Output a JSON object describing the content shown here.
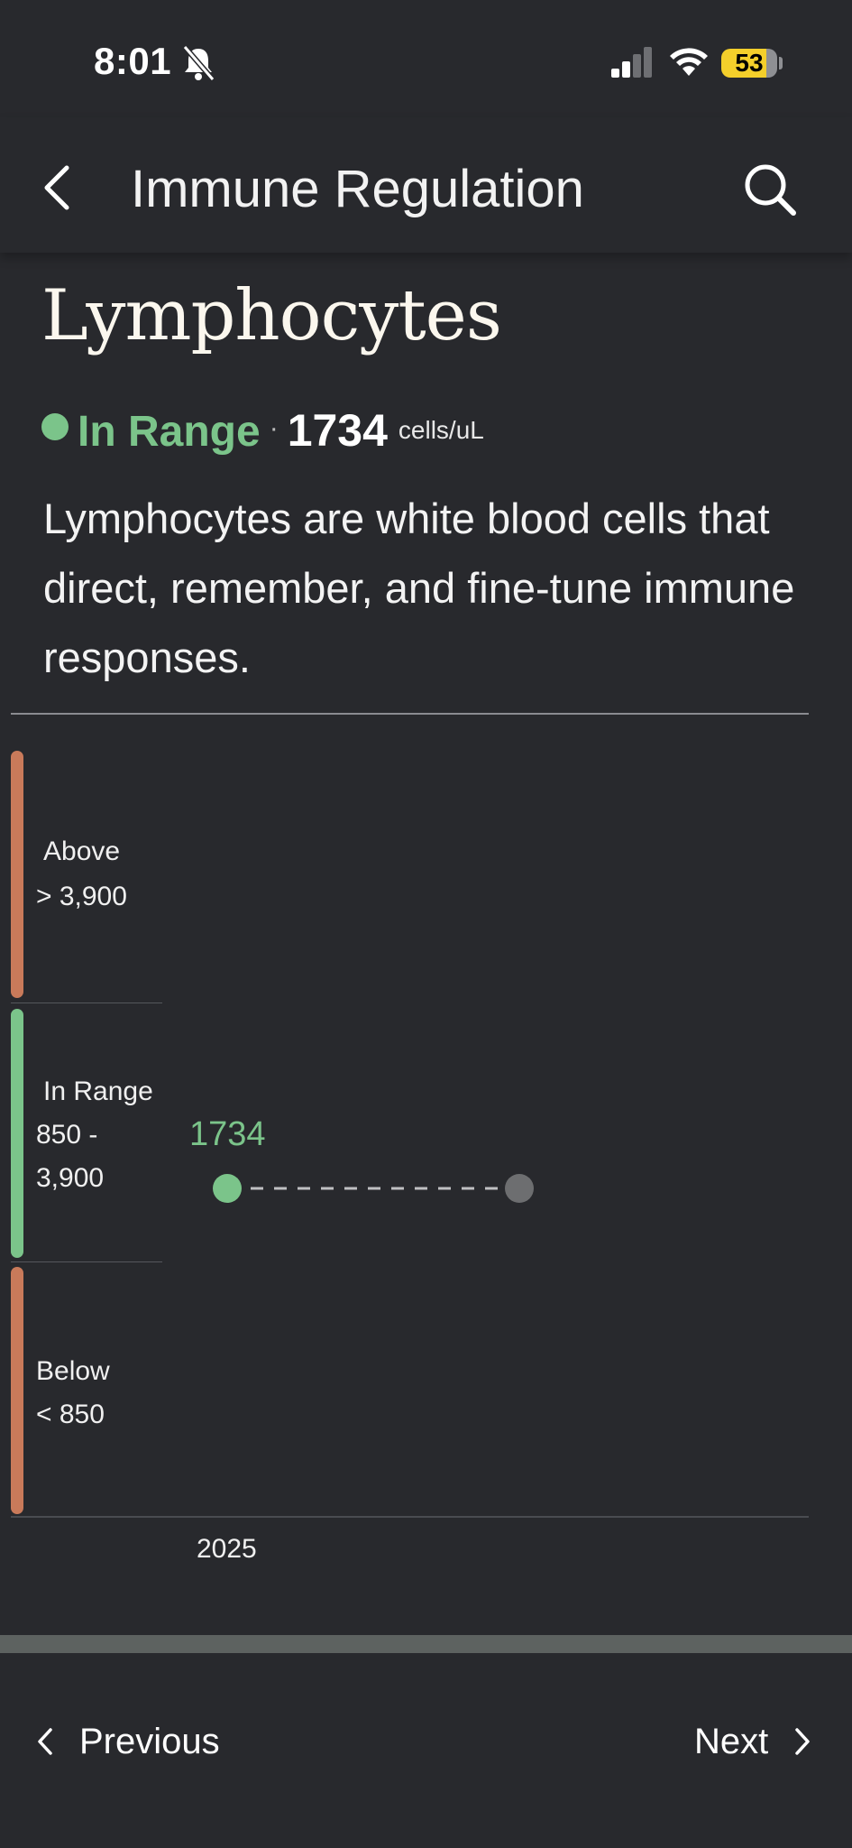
{
  "status_bar": {
    "time": "8:01",
    "battery": "53",
    "icons": [
      "bell-off-icon",
      "signal-icon",
      "wifi-icon",
      "battery-icon"
    ],
    "battery_color": "#f4cf2b"
  },
  "header": {
    "title": "Immune Regulation",
    "back_icon": "chevron-left-icon",
    "search_icon": "search-icon"
  },
  "marker": {
    "title": "Lymphocytes",
    "status": "In Range",
    "separator": "·",
    "value": "1734",
    "unit": "cells/uL",
    "status_color": "#7bc48a",
    "description": "Lymphocytes are white blood cells that direct, remember, and fine-tune immune responses."
  },
  "chart_data": {
    "type": "scatter",
    "bands": [
      {
        "name": "Above",
        "range": "> 3,900",
        "color": "#c97a5a"
      },
      {
        "name": "In Range",
        "range_line1": "850 -",
        "range_line2": "3,900",
        "color": "#7bc48a"
      },
      {
        "name": "Below",
        "range": "< 850",
        "color": "#c97a5a"
      }
    ],
    "points": [
      {
        "x": "2025",
        "y": 1734,
        "label": "1734",
        "color": "#7bc48a"
      }
    ],
    "x_tick_labels": [
      "2025"
    ]
  },
  "footer": {
    "previous_label": "Previous",
    "next_label": "Next"
  }
}
